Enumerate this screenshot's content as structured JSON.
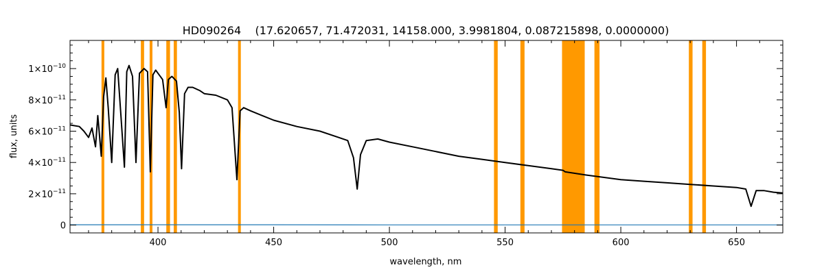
{
  "chart_data": {
    "type": "line",
    "title": "HD090264    (17.620657, 71.472031, 14158.000, 3.9981804, 0.087215898, 0.0000000)",
    "xlabel": "wavelength, nm",
    "ylabel": "flux, units",
    "xlim": [
      362,
      670
    ],
    "ylim": [
      -5e-12,
      1.18e-10
    ],
    "x_ticks": [
      400,
      450,
      500,
      550,
      600,
      650
    ],
    "x_tick_labels": [
      "400",
      "450",
      "500",
      "550",
      "600",
      "650"
    ],
    "y_ticks": [
      {
        "value": 0,
        "mantissa": "0",
        "exponent": ""
      },
      {
        "value": 2e-11,
        "mantissa": "2×10",
        "exponent": "−11"
      },
      {
        "value": 4e-11,
        "mantissa": "4×10",
        "exponent": "−11"
      },
      {
        "value": 6e-11,
        "mantissa": "6×10",
        "exponent": "−11"
      },
      {
        "value": 8e-11,
        "mantissa": "8×10",
        "exponent": "−11"
      },
      {
        "value": 1e-10,
        "mantissa": "1×10",
        "exponent": "−10"
      }
    ],
    "grid": false,
    "masked_bands": [
      [
        375.6,
        376.8
      ],
      [
        392.6,
        394.0
      ],
      [
        396.4,
        397.6
      ],
      [
        403.6,
        405.2
      ],
      [
        406.8,
        408.2
      ],
      [
        434.6,
        435.8
      ],
      [
        545.2,
        546.8
      ],
      [
        556.6,
        558.4
      ],
      [
        574.6,
        584.4
      ],
      [
        588.6,
        590.8
      ],
      [
        629.4,
        631.0
      ],
      [
        635.2,
        636.8
      ]
    ],
    "series": [
      {
        "name": "",
        "color": "#000000",
        "x": [
          362,
          366,
          368,
          370,
          371.5,
          373,
          374,
          375.5,
          376.5,
          377.5,
          378.5,
          380,
          381.5,
          382.6,
          384,
          385.5,
          386.5,
          387.5,
          389,
          390.5,
          392,
          394,
          395.5,
          396.7,
          397.8,
          399,
          400.5,
          402,
          403.5,
          404.5,
          406,
          408,
          409.2,
          410.2,
          411.5,
          413,
          415,
          418,
          420,
          425,
          430,
          432,
          434.1,
          435.5,
          437,
          440,
          445,
          450,
          460,
          470,
          478,
          482,
          484.5,
          486.1,
          487.5,
          490,
          495,
          500,
          510,
          520,
          530,
          540,
          550,
          560,
          570,
          575,
          576,
          585,
          590,
          600,
          610,
          620,
          630,
          640,
          650,
          654,
          656.3,
          658.5,
          662,
          666,
          670
        ],
        "y": [
          6.4e-11,
          6.3e-11,
          6e-11,
          5.6e-11,
          6.2e-11,
          5e-11,
          7e-11,
          4.4e-11,
          8.2e-11,
          9.4e-11,
          7.5e-11,
          4e-11,
          9.6e-11,
          1e-10,
          7e-11,
          3.7e-11,
          9.8e-11,
          1.02e-10,
          9.5e-11,
          4e-11,
          9.7e-11,
          1e-10,
          9.8e-11,
          3.4e-11,
          9.6e-11,
          9.9e-11,
          9.6e-11,
          9.3e-11,
          7.5e-11,
          9.3e-11,
          9.5e-11,
          9.2e-11,
          7.2e-11,
          3.6e-11,
          8.4e-11,
          8.8e-11,
          8.8e-11,
          8.6e-11,
          8.4e-11,
          8.3e-11,
          8e-11,
          7.5e-11,
          2.9e-11,
          7.3e-11,
          7.5e-11,
          7.3e-11,
          7e-11,
          6.7e-11,
          6.3e-11,
          6e-11,
          5.6e-11,
          5.4e-11,
          4.3e-11,
          2.3e-11,
          4.5e-11,
          5.4e-11,
          5.5e-11,
          5.3e-11,
          5e-11,
          4.7e-11,
          4.4e-11,
          4.2e-11,
          4e-11,
          3.8e-11,
          3.6e-11,
          3.5e-11,
          3.4e-11,
          3.2e-11,
          3.1e-11,
          2.9e-11,
          2.8e-11,
          2.7e-11,
          2.6e-11,
          2.5e-11,
          2.4e-11,
          2.3e-11,
          1.2e-11,
          2.2e-11,
          2.2e-11,
          2.1e-11,
          2.05e-11
        ]
      },
      {
        "name": "",
        "color": "#1f77b4",
        "x": [
          362,
          400,
          450,
          500,
          550,
          600,
          650,
          670
        ],
        "y": [
          2e-13,
          2e-13,
          2e-13,
          1e-13,
          1e-13,
          1e-13,
          1e-13,
          1e-13
        ]
      }
    ]
  }
}
